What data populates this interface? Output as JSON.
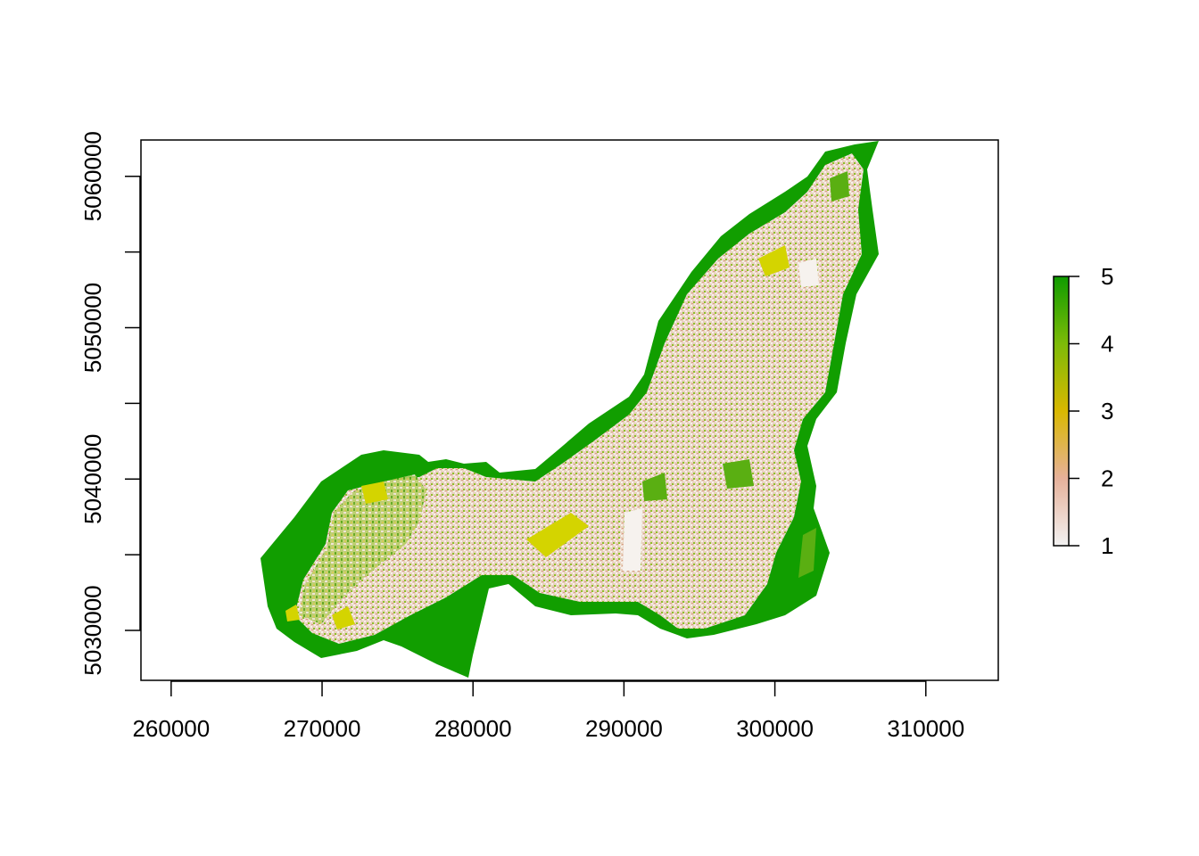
{
  "chart_data": {
    "type": "heatmap",
    "title": "",
    "xlabel": "",
    "ylabel": "",
    "x_ticks": [
      260000,
      270000,
      280000,
      290000,
      300000,
      310000
    ],
    "y_ticks": [
      5030000,
      5035000,
      5040000,
      5045000,
      5050000,
      5055000,
      5060000
    ],
    "y_tick_labels": [
      "5030000",
      "5040000",
      "5050000",
      "5060000"
    ],
    "x_range": [
      258000,
      314800
    ],
    "y_range": [
      5026700,
      5062400
    ],
    "legend": {
      "position": "right",
      "min": 1,
      "max": 5,
      "tick_labels": [
        "1",
        "2",
        "3",
        "4",
        "5"
      ],
      "colors": [
        "#f2f2f2",
        "#e6b19a",
        "#d9b800",
        "#7dbb08",
        "#0f9b00"
      ]
    },
    "raster_description_values": {
      "low_class_color": "#f2f2f2",
      "high_class_color": "#119e00"
    }
  }
}
